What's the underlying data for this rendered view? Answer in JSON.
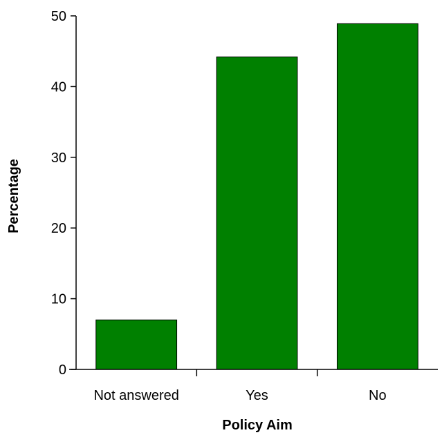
{
  "chart_data": {
    "type": "bar",
    "categories": [
      "Not answered",
      "Yes",
      "No"
    ],
    "values": [
      7,
      44.2,
      48.9
    ],
    "xlabel": "Policy Aim",
    "ylabel": "Percentage",
    "ylim": [
      0,
      50
    ],
    "yticks": [
      0,
      10,
      20,
      30,
      40,
      50
    ],
    "grid": false,
    "legend": false,
    "bar_color": "#008000",
    "bar_edge_color": "#000000",
    "axis_color": "#000000"
  }
}
